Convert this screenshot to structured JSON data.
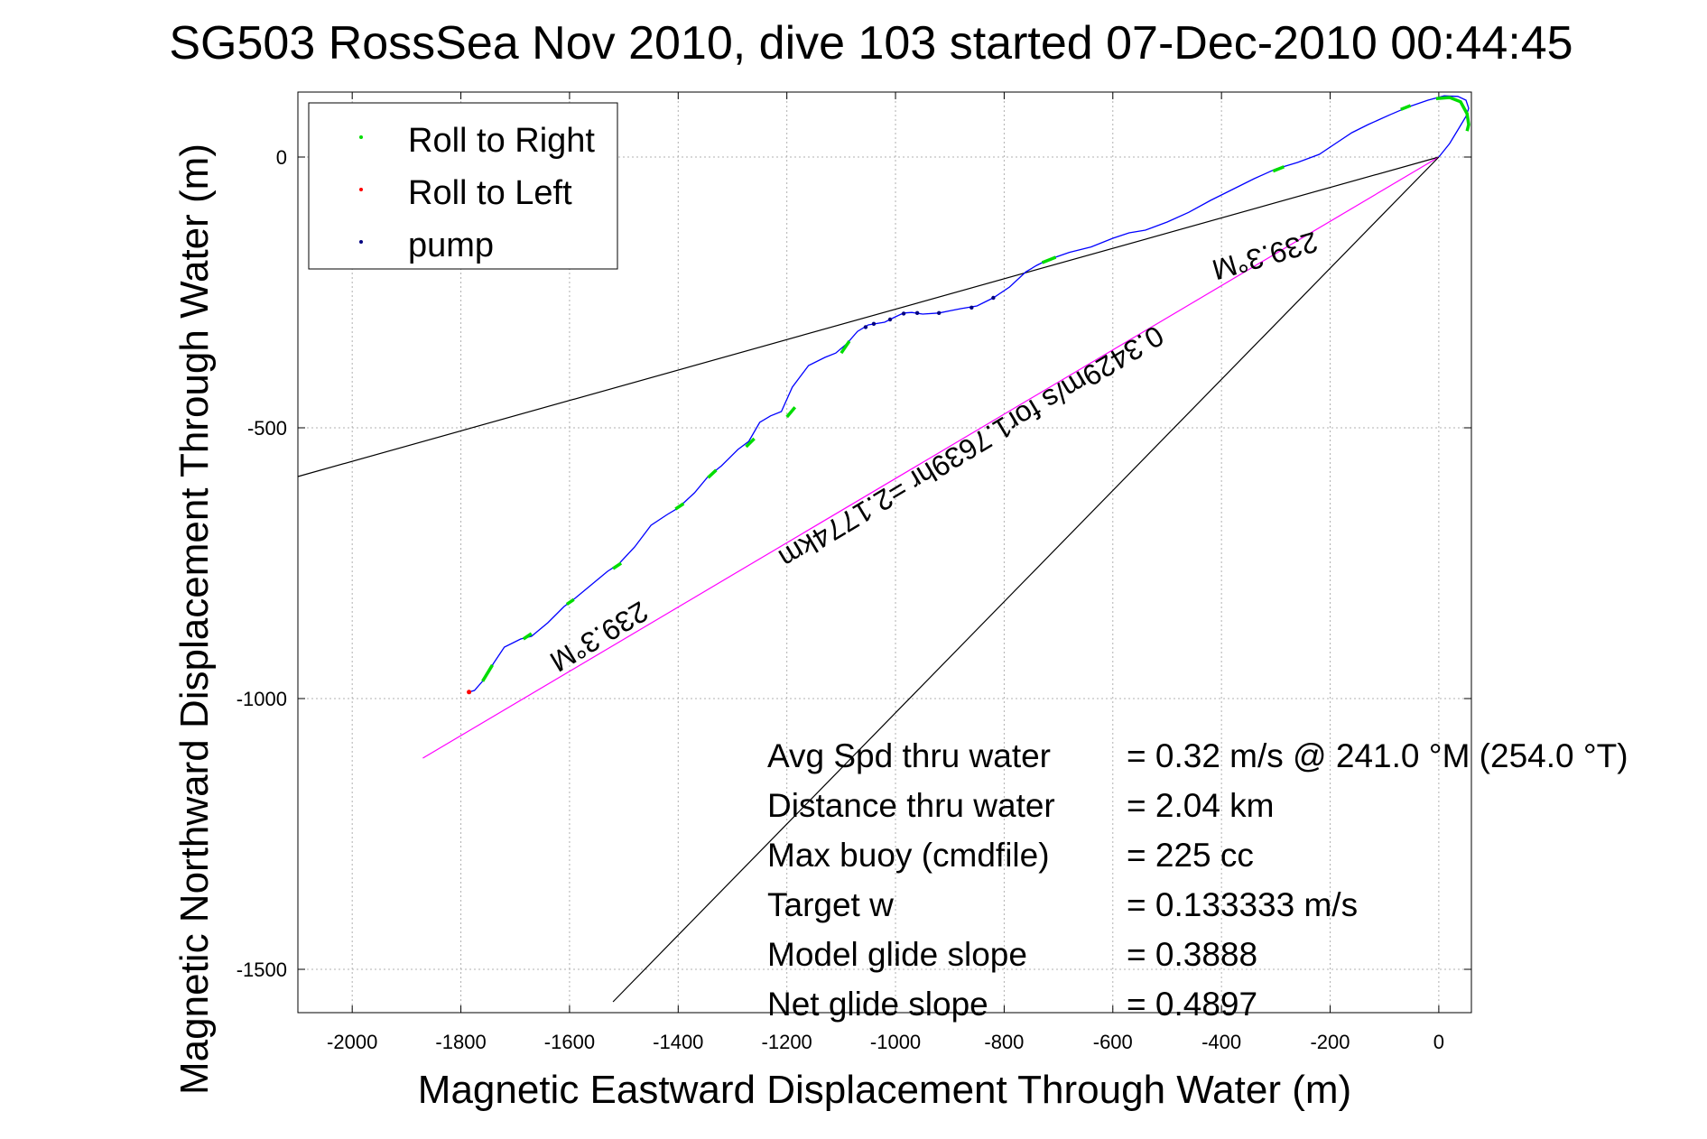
{
  "chart_data": {
    "type": "line",
    "title": "SG503 RossSea Nov 2010, dive 103 started 07-Dec-2010 00:44:45",
    "xlabel": "Magnetic Eastward Displacement Through Water (m)",
    "ylabel": "Magnetic Northward Displacement Through Water (m)",
    "xlim": [
      -2100,
      60
    ],
    "ylim": [
      -1580,
      120
    ],
    "xticks": [
      -2000,
      -1800,
      -1600,
      -1400,
      -1200,
      -1000,
      -800,
      -600,
      -400,
      -200,
      0
    ],
    "yticks": [
      -1500,
      -1000,
      -500,
      0
    ],
    "grid": true,
    "legend_position": "top-left",
    "legend": [
      {
        "label": "Roll to Right",
        "color": "#00dd00"
      },
      {
        "label": "Roll to Left",
        "color": "#ff0000"
      },
      {
        "label": "pump",
        "color": "#000080"
      }
    ],
    "track": {
      "color": "#0000ff",
      "points": [
        [
          0,
          0
        ],
        [
          20,
          25
        ],
        [
          38,
          55
        ],
        [
          50,
          75
        ],
        [
          55,
          90
        ],
        [
          50,
          105
        ],
        [
          35,
          112
        ],
        [
          10,
          113
        ],
        [
          -20,
          105
        ],
        [
          -55,
          93
        ],
        [
          -90,
          78
        ],
        [
          -130,
          60
        ],
        [
          -160,
          45
        ],
        [
          -190,
          25
        ],
        [
          -220,
          5
        ],
        [
          -260,
          -10
        ],
        [
          -300,
          -22
        ],
        [
          -340,
          -40
        ],
        [
          -380,
          -60
        ],
        [
          -420,
          -80
        ],
        [
          -460,
          -102
        ],
        [
          -500,
          -120
        ],
        [
          -540,
          -135
        ],
        [
          -570,
          -140
        ],
        [
          -600,
          -150
        ],
        [
          -640,
          -166
        ],
        [
          -680,
          -176
        ],
        [
          -720,
          -190
        ],
        [
          -740,
          -200
        ],
        [
          -760,
          -212
        ],
        [
          -790,
          -240
        ],
        [
          -820,
          -260
        ],
        [
          -850,
          -275
        ],
        [
          -880,
          -280
        ],
        [
          -900,
          -284
        ],
        [
          -920,
          -288
        ],
        [
          -950,
          -290
        ],
        [
          -970,
          -287
        ],
        [
          -985,
          -288
        ],
        [
          -1000,
          -295
        ],
        [
          -1020,
          -305
        ],
        [
          -1050,
          -310
        ],
        [
          -1070,
          -322
        ],
        [
          -1090,
          -345
        ],
        [
          -1110,
          -362
        ],
        [
          -1130,
          -370
        ],
        [
          -1160,
          -385
        ],
        [
          -1190,
          -425
        ],
        [
          -1210,
          -470
        ],
        [
          -1230,
          -478
        ],
        [
          -1250,
          -490
        ],
        [
          -1270,
          -525
        ],
        [
          -1290,
          -540
        ],
        [
          -1320,
          -570
        ],
        [
          -1345,
          -590
        ],
        [
          -1370,
          -620
        ],
        [
          -1400,
          -648
        ],
        [
          -1420,
          -660
        ],
        [
          -1450,
          -680
        ],
        [
          -1480,
          -720
        ],
        [
          -1510,
          -752
        ],
        [
          -1530,
          -765
        ],
        [
          -1560,
          -790
        ],
        [
          -1590,
          -815
        ],
        [
          -1610,
          -830
        ],
        [
          -1640,
          -860
        ],
        [
          -1670,
          -885
        ],
        [
          -1690,
          -890
        ],
        [
          -1720,
          -905
        ],
        [
          -1740,
          -935
        ],
        [
          -1760,
          -968
        ],
        [
          -1775,
          -985
        ],
        [
          -1785,
          -988
        ]
      ]
    },
    "roll_right_segments": [
      [
        [
          -5,
          108
        ],
        [
          20,
          110
        ],
        [
          40,
          102
        ],
        [
          52,
          80
        ],
        [
          55,
          60
        ],
        [
          52,
          48
        ]
      ],
      [
        [
          -70,
          88
        ],
        [
          -52,
          95
        ]
      ],
      [
        [
          -305,
          -26
        ],
        [
          -285,
          -18
        ]
      ],
      [
        [
          -730,
          -195
        ],
        [
          -705,
          -185
        ]
      ],
      [
        [
          -1100,
          -362
        ],
        [
          -1085,
          -340
        ]
      ],
      [
        [
          -1200,
          -480
        ],
        [
          -1185,
          -462
        ]
      ],
      [
        [
          -1275,
          -535
        ],
        [
          -1260,
          -520
        ]
      ],
      [
        [
          -1345,
          -592
        ],
        [
          -1330,
          -578
        ]
      ],
      [
        [
          -1405,
          -650
        ],
        [
          -1390,
          -640
        ]
      ],
      [
        [
          -1520,
          -760
        ],
        [
          -1505,
          -750
        ]
      ],
      [
        [
          -1605,
          -826
        ],
        [
          -1592,
          -817
        ]
      ],
      [
        [
          -1685,
          -890
        ],
        [
          -1670,
          -880
        ]
      ],
      [
        [
          -1760,
          -968
        ],
        [
          -1742,
          -938
        ]
      ]
    ],
    "roll_left_points": [
      [
        -1785,
        -988
      ]
    ],
    "pump_points": [
      [
        -820,
        -260
      ],
      [
        -860,
        -278
      ],
      [
        -920,
        -288
      ],
      [
        -960,
        -288
      ],
      [
        -985,
        -289
      ],
      [
        -1010,
        -300
      ],
      [
        -1040,
        -308
      ],
      [
        -1055,
        -314
      ]
    ],
    "reference_lines": [
      {
        "name": "heading 239.3 M line",
        "color": "#000000",
        "points": [
          [
            0,
            0
          ],
          [
            -2100,
            -590
          ]
        ]
      },
      {
        "name": "average track line",
        "color": "#ff00ff",
        "points": [
          [
            0,
            0
          ],
          [
            -1870,
            -1110
          ]
        ]
      },
      {
        "name": "current line",
        "color": "#000000",
        "points": [
          [
            0,
            0
          ],
          [
            -1520,
            -1560
          ]
        ]
      }
    ],
    "annotations": [
      {
        "text": "239.3°M",
        "x": -1555,
        "y": -870,
        "rotation": 149
      },
      {
        "text": "0.3429m/s for1.7639hr =2.1774km",
        "x": -870,
        "y": -520,
        "rotation": 149
      },
      {
        "text": "239.3°M",
        "x": -325,
        "y": -165,
        "rotation": 164
      }
    ],
    "stats": [
      {
        "label": "Avg Spd thru water",
        "value": "=  0.32 m/s @ 241.0 °M (254.0 °T)"
      },
      {
        "label": "Distance thru water",
        "value": "=  2.04 km"
      },
      {
        "label": "Max buoy (cmdfile)",
        "value": "= 225 cc"
      },
      {
        "label": "Target w",
        "value": "= 0.133333 m/s"
      },
      {
        "label": "Model glide slope",
        "value": "= 0.3888"
      },
      {
        "label": "Net glide slope",
        "value": "= 0.4897"
      }
    ]
  }
}
